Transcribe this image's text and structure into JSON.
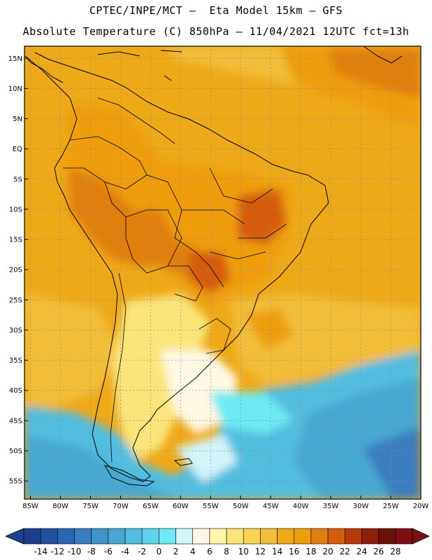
{
  "header": {
    "line1": "CPTEC/INPE/MCT –  Eta Model 15km – GFS",
    "line2": "Absolute Temperature (C) 850hPa – 11/04/2021 12UTC fct=13h"
  },
  "map": {
    "lon_range": [
      -86,
      -20
    ],
    "lat_range": [
      -58,
      17
    ],
    "lat_ticks": [
      15,
      10,
      5,
      0,
      -5,
      -10,
      -15,
      -20,
      -25,
      -30,
      -35,
      -40,
      -45,
      -50,
      -55
    ],
    "lat_labels": [
      "15N",
      "10N",
      "5N",
      "EQ",
      "5S",
      "10S",
      "15S",
      "20S",
      "25S",
      "30S",
      "35S",
      "40S",
      "45S",
      "50S",
      "55S"
    ],
    "lon_ticks": [
      -85,
      -80,
      -75,
      -70,
      -65,
      -60,
      -55,
      -50,
      -45,
      -40,
      -35,
      -30,
      -25,
      -20
    ],
    "lon_labels": [
      "85W",
      "80W",
      "75W",
      "70W",
      "65W",
      "60W",
      "55W",
      "50W",
      "45W",
      "40W",
      "35W",
      "30W",
      "25W",
      "20W"
    ],
    "grid": true
  },
  "colorbar": {
    "labels": [
      "-14",
      "-12",
      "-10",
      "-8",
      "-6",
      "-4",
      "-2",
      "0",
      "2",
      "4",
      "6",
      "8",
      "10",
      "12",
      "14",
      "16",
      "18",
      "20",
      "22",
      "24",
      "26",
      "28"
    ],
    "colors": [
      "#1b3f8c",
      "#22509e",
      "#2c66b0",
      "#3a7dbf",
      "#3f93c8",
      "#47a8d2",
      "#52bde0",
      "#5ed3ea",
      "#6deaf3",
      "#d2f4fa",
      "#fff8e4",
      "#fdf6a8",
      "#fbe57a",
      "#f7d253",
      "#f2bd38",
      "#eea919",
      "#ef9d0e",
      "#e07f0f",
      "#d65c0e",
      "#b73a0b",
      "#8f1f08",
      "#6b1206",
      "#7a1016"
    ]
  }
}
